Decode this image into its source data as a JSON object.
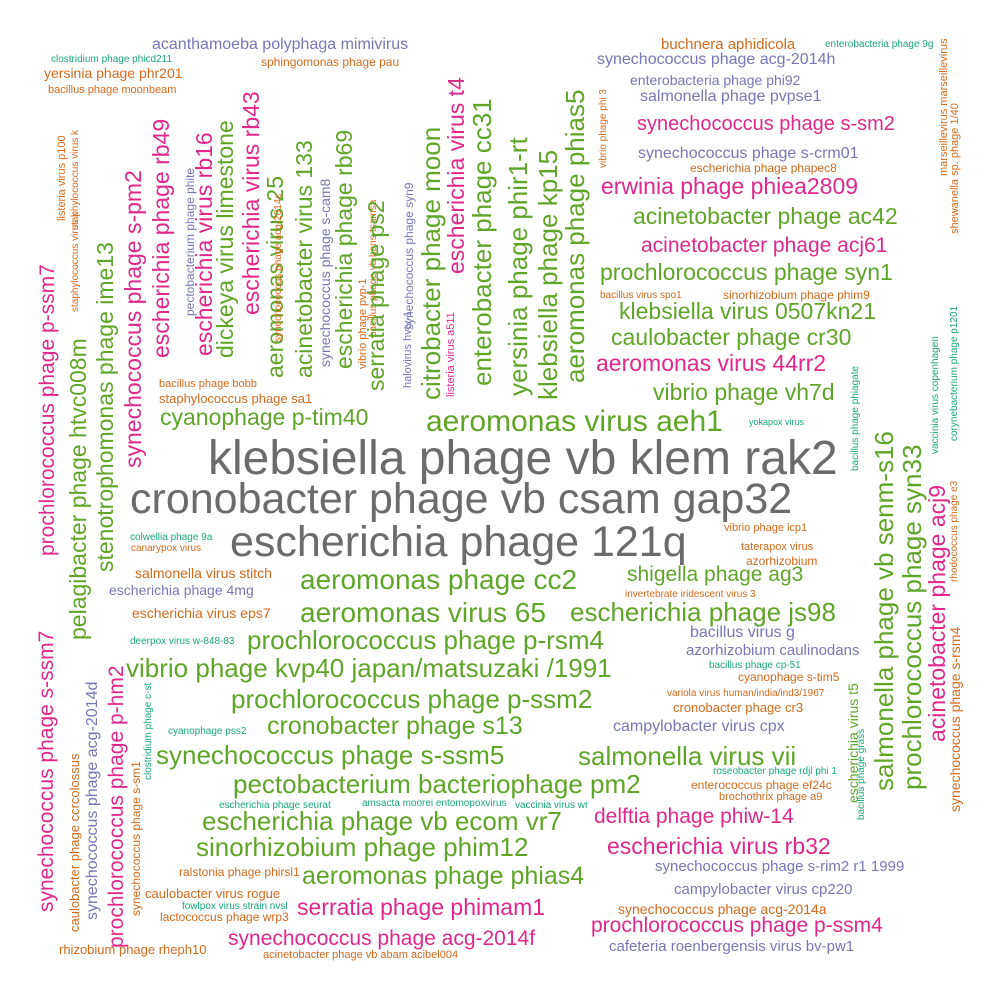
{
  "colors": {
    "grey": "#6b6b6b",
    "green": "#5fa528",
    "magenta": "#e0288a",
    "purple": "#7777b8",
    "orange": "#d46a1c",
    "teal": "#1ba77c"
  },
  "words": [
    {
      "text": "klebsiella phage vb klem rak2",
      "color": "grey"
    },
    {
      "text": "cronobacter phage vb csam gap32",
      "color": "grey"
    },
    {
      "text": "escherichia phage 121q",
      "color": "grey"
    },
    {
      "text": "aeromonas virus aeh1",
      "color": "green"
    },
    {
      "text": "aeromonas phage cc2",
      "color": "green"
    },
    {
      "text": "aeromonas virus 65",
      "color": "green"
    },
    {
      "text": "escherichia phage js98",
      "color": "green"
    },
    {
      "text": "prochlorococcus phage p-rsm4",
      "color": "green"
    },
    {
      "text": "vibrio phage kvp40 japan/matsuzaki /1991",
      "color": "green"
    },
    {
      "text": "prochlorococcus phage p-ssm2",
      "color": "green"
    },
    {
      "text": "cronobacter phage s13",
      "color": "green"
    },
    {
      "text": "synechococcus phage s-ssm5",
      "color": "green"
    },
    {
      "text": "salmonella virus vii",
      "color": "green"
    },
    {
      "text": "pectobacterium bacteriophage pm2",
      "color": "green"
    },
    {
      "text": "escherichia phage vb ecom vr7",
      "color": "green"
    },
    {
      "text": "delftia phage phiw-14",
      "color": "magenta"
    },
    {
      "text": "sinorhizobium phage phim12",
      "color": "green"
    },
    {
      "text": "escherichia virus rb32",
      "color": "magenta"
    },
    {
      "text": "aeromonas phage phias4",
      "color": "green"
    },
    {
      "text": "serratia phage phimam1",
      "color": "magenta"
    },
    {
      "text": "synechococcus phage acg-2014f",
      "color": "magenta"
    },
    {
      "text": "prochlorococcus phage p-ssm4",
      "color": "magenta"
    },
    {
      "text": "shigella phage ag3",
      "color": "green"
    },
    {
      "text": "cyanophage p-tim40",
      "color": "green"
    },
    {
      "text": "vibrio phage vh7d",
      "color": "green"
    },
    {
      "text": "aeromonas virus 44rr2",
      "color": "magenta"
    },
    {
      "text": "caulobacter phage cr30",
      "color": "green"
    },
    {
      "text": "klebsiella virus 0507kn21",
      "color": "green"
    },
    {
      "text": "prochlorococcus phage syn1",
      "color": "green"
    },
    {
      "text": "acinetobacter phage acj61",
      "color": "magenta"
    },
    {
      "text": "acinetobacter phage ac42",
      "color": "green"
    },
    {
      "text": "erwinia phage phiea2809",
      "color": "magenta"
    },
    {
      "text": "synechococcus phage s-sm2",
      "color": "magenta"
    },
    {
      "text": "synechococcus phage s-crm01",
      "color": "purple"
    },
    {
      "text": "salmonella phage pvpse1",
      "color": "purple"
    },
    {
      "text": "enterobacteria phage phi92",
      "color": "purple"
    },
    {
      "text": "synechococcus phage acg-2014h",
      "color": "purple"
    },
    {
      "text": "buchnera aphidicola",
      "color": "orange"
    },
    {
      "text": "enterobacteria phage 9g",
      "color": "teal"
    },
    {
      "text": "escherichia phage phapec8",
      "color": "orange"
    },
    {
      "text": "acanthamoeba polyphaga mimivirus",
      "color": "purple"
    },
    {
      "text": "sphingomonas phage pau",
      "color": "orange"
    },
    {
      "text": "clostridium phage phicd211",
      "color": "teal"
    },
    {
      "text": "yersinia phage phr201",
      "color": "orange"
    },
    {
      "text": "bacillus phage moonbeam",
      "color": "orange"
    },
    {
      "text": "bacillus phage bobb",
      "color": "orange"
    },
    {
      "text": "staphylococcus phage sa1",
      "color": "orange"
    },
    {
      "text": "colwellia phage 9a",
      "color": "teal"
    },
    {
      "text": "canarypox virus",
      "color": "orange"
    },
    {
      "text": "salmonella virus stitch",
      "color": "orange"
    },
    {
      "text": "escherichia phage 4mg",
      "color": "purple"
    },
    {
      "text": "escherichia virus eps7",
      "color": "orange"
    },
    {
      "text": "deerpox virus w-848-83",
      "color": "teal"
    },
    {
      "text": "cyanophage pss2",
      "color": "teal"
    },
    {
      "text": "escherichia phage seurat",
      "color": "teal"
    },
    {
      "text": "amsacta moorei entomopoxvirus",
      "color": "teal"
    },
    {
      "text": "vaccinia virus wr",
      "color": "teal"
    },
    {
      "text": "ralstonia phage phirsl1",
      "color": "orange"
    },
    {
      "text": "caulobacter virus rogue",
      "color": "orange"
    },
    {
      "text": "fowlpox virus strain nvsl",
      "color": "teal"
    },
    {
      "text": "lactococcus phage wrp3",
      "color": "orange"
    },
    {
      "text": "rhizobium phage rheph10",
      "color": "orange"
    },
    {
      "text": "acinetobacter phage vb abam acibel004",
      "color": "orange"
    },
    {
      "text": "cafeteria roenbergensis virus bv-pw1",
      "color": "purple"
    },
    {
      "text": "synechococcus phage acg-2014a",
      "color": "orange"
    },
    {
      "text": "campylobacter virus cp220",
      "color": "purple"
    },
    {
      "text": "synechococcus phage s-rim2 r1 1999",
      "color": "purple"
    },
    {
      "text": "brochothrix phage a9",
      "color": "orange"
    },
    {
      "text": "enterococcus phage ef24c",
      "color": "orange"
    },
    {
      "text": "roseobacter phage rdjl phi 1",
      "color": "teal"
    },
    {
      "text": "campylobacter virus cpx",
      "color": "purple"
    },
    {
      "text": "cronobacter phage cr3",
      "color": "orange"
    },
    {
      "text": "variola virus human/india/ind3/1967",
      "color": "orange"
    },
    {
      "text": "cyanophage s-tim5",
      "color": "orange"
    },
    {
      "text": "bacillus phage cp-51",
      "color": "teal"
    },
    {
      "text": "azorhizobium caulinodans",
      "color": "purple"
    },
    {
      "text": "bacillus virus g",
      "color": "purple"
    },
    {
      "text": "invertebrate iridescent virus 3",
      "color": "orange"
    },
    {
      "text": "azorhizobium",
      "color": "orange"
    },
    {
      "text": "taterapox virus",
      "color": "orange"
    },
    {
      "text": "vibrio phage icp1",
      "color": "orange"
    },
    {
      "text": "yokapox virus",
      "color": "teal"
    },
    {
      "text": "bacillus virus spo1",
      "color": "orange"
    },
    {
      "text": "sinorhizobium phage phim9",
      "color": "orange"
    },
    {
      "text": "pectobacterium phage phite",
      "color": "purple"
    },
    {
      "text": "synechococcus phage s-pm2",
      "color": "magenta"
    },
    {
      "text": "escherichia phage rb49",
      "color": "magenta"
    },
    {
      "text": "escherichia virus rb16",
      "color": "magenta"
    },
    {
      "text": "dickeya virus limestone",
      "color": "green"
    },
    {
      "text": "escherichia virus rb43",
      "color": "magenta"
    },
    {
      "text": "aeromonas virus 25",
      "color": "green"
    },
    {
      "text": "synechococcus phage acg-2014c",
      "color": "orange"
    },
    {
      "text": "acinetobacter virus 133",
      "color": "green"
    },
    {
      "text": "synechococcus phage s-cam8",
      "color": "purple"
    },
    {
      "text": "escherichia phage rb69",
      "color": "green"
    },
    {
      "text": "vibrio phage pvp-1",
      "color": "orange"
    },
    {
      "text": "bacillus phage vb bans-tsamsa",
      "color": "orange"
    },
    {
      "text": "serratia phage ps2",
      "color": "green"
    },
    {
      "text": "halovirus hvtv-1",
      "color": "purple"
    },
    {
      "text": "synechococcus phage syn9",
      "color": "purple"
    },
    {
      "text": "citrobacter phage moon",
      "color": "green"
    },
    {
      "text": "listeria virus a511",
      "color": "magenta"
    },
    {
      "text": "escherichia virus t4",
      "color": "magenta"
    },
    {
      "text": "enterobacter phage cc31",
      "color": "green"
    },
    {
      "text": "yersinia phage phir1-rt",
      "color": "green"
    },
    {
      "text": "klebsiella phage kp15",
      "color": "green"
    },
    {
      "text": "aeromonas phage phias5",
      "color": "green"
    },
    {
      "text": "vibrio phage phi 3",
      "color": "orange"
    },
    {
      "text": "marseillevirus marseillevirus",
      "color": "orange"
    },
    {
      "text": "shewanella sp. phage 1/40",
      "color": "orange"
    },
    {
      "text": "vaccinia virus copenhagen",
      "color": "teal"
    },
    {
      "text": "corynebacterium phage p1201",
      "color": "teal"
    },
    {
      "text": "bacillus phage phiagate",
      "color": "teal"
    },
    {
      "text": "rhodococcus phage e3",
      "color": "orange"
    },
    {
      "text": "salmonella phage vb senm-s16",
      "color": "green"
    },
    {
      "text": "prochlorococcus phage syn33",
      "color": "green"
    },
    {
      "text": "acinetobacter phage acj9",
      "color": "magenta"
    },
    {
      "text": "synechococcus phage s-rsm4",
      "color": "orange"
    },
    {
      "text": "escherichia virus t5",
      "color": "green"
    },
    {
      "text": "bacillus phage grass",
      "color": "teal"
    },
    {
      "text": "prochlorococcus phage p-ssm7",
      "color": "magenta"
    },
    {
      "text": "listeria virus p100",
      "color": "orange"
    },
    {
      "text": "staphylococcus virus k",
      "color": "orange"
    },
    {
      "text": "staphylococcus virus k",
      "color": "orange"
    },
    {
      "text": "pelagibacter phage htvc008m",
      "color": "green"
    },
    {
      "text": "stenotrophomonas phage ime13",
      "color": "green"
    },
    {
      "text": "synechococcus phage s-ssm7",
      "color": "magenta"
    },
    {
      "text": "caulobacter phage ccrcolossus",
      "color": "orange"
    },
    {
      "text": "synechococcus phage acg-2014d",
      "color": "purple"
    },
    {
      "text": "prochlorococcus phage p-hm2",
      "color": "magenta"
    },
    {
      "text": "synechococcus phage s-sm1",
      "color": "orange"
    },
    {
      "text": "clostridium phage c-st",
      "color": "teal"
    }
  ]
}
